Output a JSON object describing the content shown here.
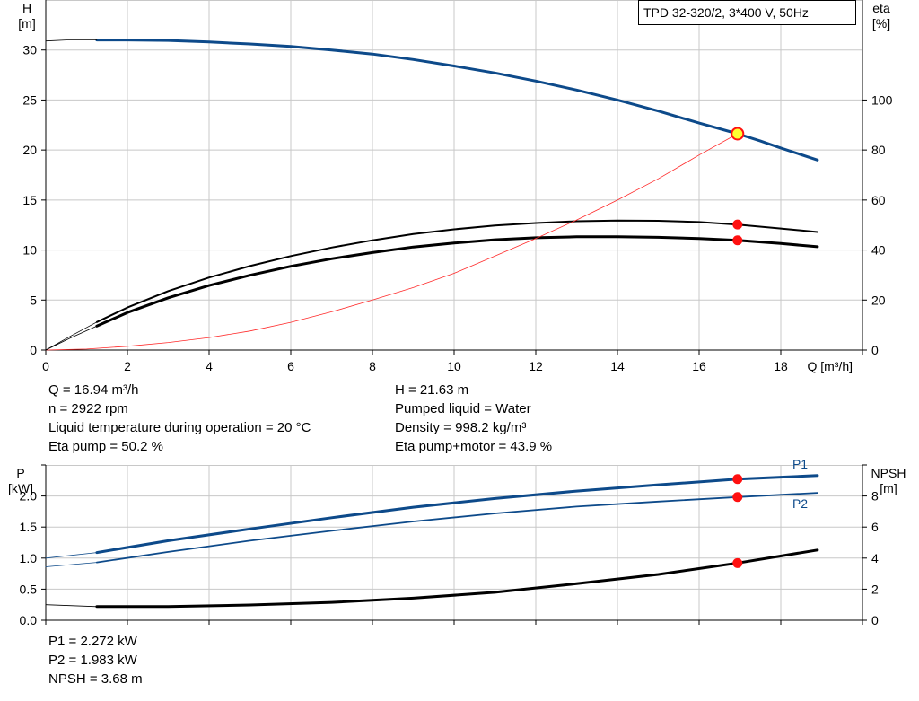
{
  "colors": {
    "grid": "#c8c8c8",
    "axis": "#000000",
    "blue": "#0d4a8a",
    "black": "#000000",
    "eta": "#ff2a2a",
    "op_fill": "#ff1010",
    "op_yellow": "#ffff30"
  },
  "chart_data": [
    {
      "id": "head",
      "type": "line",
      "legend_box": "TPD 32-320/2, 3*400 V, 50Hz",
      "y_left_label_line1": "H",
      "y_left_label_line2": "[m]",
      "y_right_label_line1": "eta",
      "y_right_label_line2": "[%]",
      "x_label": "Q [m³/h]",
      "xlim": [
        0,
        20
      ],
      "xticks": [
        0,
        2,
        4,
        6,
        8,
        10,
        12,
        14,
        16,
        18
      ],
      "ylim_left": [
        0,
        35
      ],
      "yticks_left": [
        0,
        5,
        10,
        15,
        20,
        25,
        30
      ],
      "ylim_right": [
        0,
        140
      ],
      "yticks_right": [
        0,
        20,
        40,
        60,
        80,
        100
      ],
      "series": [
        {
          "axis": "left",
          "color": "#0d4a8a",
          "width": 3,
          "x": [
            1.25,
            2,
            3,
            4,
            5,
            6,
            7,
            8,
            9,
            10,
            11,
            12,
            13,
            14,
            15,
            16,
            16.94,
            17.5,
            18,
            18.9
          ],
          "y": [
            31.0,
            31.0,
            30.95,
            30.8,
            30.6,
            30.35,
            30.0,
            29.6,
            29.05,
            28.4,
            27.7,
            26.9,
            26.0,
            25.0,
            23.9,
            22.7,
            21.63,
            20.9,
            20.2,
            19.0
          ]
        },
        {
          "axis": "right",
          "color": "#000000",
          "width": 2,
          "x": [
            1.25,
            2,
            3,
            4,
            5,
            6,
            7,
            8,
            9,
            10,
            11,
            12,
            13,
            14,
            15,
            16,
            16.94,
            18,
            18.9
          ],
          "y": [
            11.2,
            17.0,
            23.6,
            29.0,
            33.6,
            37.6,
            41.0,
            43.9,
            46.4,
            48.3,
            49.8,
            50.8,
            51.5,
            51.8,
            51.7,
            51.2,
            50.2,
            48.6,
            47.2
          ]
        },
        {
          "axis": "right",
          "color": "#000000",
          "width": 3,
          "x": [
            1.25,
            2,
            3,
            4,
            5,
            6,
            7,
            8,
            9,
            10,
            11,
            12,
            13,
            14,
            15,
            16,
            16.94,
            18,
            18.9
          ],
          "y": [
            9.6,
            15.0,
            20.9,
            25.8,
            29.9,
            33.5,
            36.5,
            39.0,
            41.2,
            42.8,
            44.1,
            44.9,
            45.3,
            45.3,
            45.1,
            44.6,
            43.9,
            42.6,
            41.3
          ]
        },
        {
          "axis": "right",
          "color": "#ff2a2a",
          "width": 0.8,
          "x": [
            0,
            1,
            2,
            3,
            4,
            5,
            6,
            7,
            8,
            9,
            10,
            11,
            12,
            13,
            14,
            15,
            16,
            16.94
          ],
          "y": [
            0.0,
            0.4,
            1.5,
            3.0,
            5.0,
            7.6,
            11.1,
            15.3,
            20.0,
            25.0,
            30.7,
            37.6,
            44.6,
            52.0,
            60.0,
            68.5,
            78.0,
            86.5
          ]
        },
        {
          "axis": "left",
          "color": "#000000",
          "width": 0.8,
          "x": [
            0,
            0.5,
            1.25
          ],
          "y": [
            30.9,
            31.0,
            31.0
          ]
        },
        {
          "axis": "right",
          "color": "#000000",
          "width": 0.8,
          "x": [
            0,
            0.6,
            1.25
          ],
          "y": [
            0,
            5.5,
            11.2
          ]
        },
        {
          "axis": "right",
          "color": "#000000",
          "width": 0.8,
          "x": [
            0,
            0.6,
            1.25
          ],
          "y": [
            0,
            4.8,
            9.6
          ]
        }
      ],
      "points": [
        {
          "axis": "left",
          "x": 16.94,
          "y": 21.63,
          "style": "yellow"
        },
        {
          "axis": "right",
          "x": 16.94,
          "y": 50.2,
          "style": "red"
        },
        {
          "axis": "right",
          "x": 16.94,
          "y": 43.9,
          "style": "red"
        }
      ]
    },
    {
      "id": "power",
      "type": "line",
      "y_left_label_line1": "P",
      "y_left_label_line2": "[kW]",
      "y_right_label_line1": "NPSH",
      "y_right_label_line2": "[m]",
      "xlim": [
        0,
        20
      ],
      "xticks": [
        0,
        2,
        4,
        6,
        8,
        10,
        12,
        14,
        16,
        18
      ],
      "ylim_left": [
        0,
        2.5
      ],
      "yticks_left": [
        0.0,
        0.5,
        1.0,
        1.5,
        2.0
      ],
      "yticks_left_labels": [
        "0.0",
        "0.5",
        "1.0",
        "1.5",
        "2.0"
      ],
      "ylim_right": [
        0,
        10
      ],
      "yticks_right": [
        0,
        2,
        4,
        6,
        8
      ],
      "series": [
        {
          "name": "P1",
          "axis": "left",
          "color": "#0d4a8a",
          "width": 3,
          "x": [
            1.25,
            3,
            5,
            7,
            9,
            11,
            13,
            15,
            16.94,
            18.9
          ],
          "y": [
            1.09,
            1.28,
            1.47,
            1.65,
            1.82,
            1.96,
            2.08,
            2.18,
            2.272,
            2.33
          ]
        },
        {
          "name": "P2",
          "axis": "left",
          "color": "#0d4a8a",
          "width": 1.8,
          "x": [
            1.25,
            3,
            5,
            7,
            9,
            11,
            13,
            15,
            16.94,
            18.9
          ],
          "y": [
            0.93,
            1.1,
            1.28,
            1.44,
            1.59,
            1.72,
            1.83,
            1.91,
            1.983,
            2.05
          ]
        },
        {
          "axis": "right",
          "color": "#000000",
          "width": 3,
          "x": [
            1.25,
            3,
            5,
            7,
            9,
            11,
            13,
            15,
            16.94,
            18.9
          ],
          "y": [
            0.88,
            0.88,
            0.98,
            1.15,
            1.42,
            1.8,
            2.35,
            2.95,
            3.68,
            4.52
          ]
        },
        {
          "axis": "left",
          "color": "#0d4a8a",
          "width": 0.8,
          "x": [
            0,
            1.25
          ],
          "y": [
            1.0,
            1.09
          ]
        },
        {
          "axis": "left",
          "color": "#0d4a8a",
          "width": 0.8,
          "x": [
            0,
            1.25
          ],
          "y": [
            0.86,
            0.93
          ]
        },
        {
          "axis": "right",
          "color": "#000000",
          "width": 0.8,
          "x": [
            0,
            1.25
          ],
          "y": [
            1.0,
            0.88
          ]
        }
      ],
      "points": [
        {
          "axis": "left",
          "x": 16.94,
          "y": 2.272,
          "style": "red"
        },
        {
          "axis": "left",
          "x": 16.94,
          "y": 1.983,
          "style": "red"
        },
        {
          "axis": "right",
          "x": 16.94,
          "y": 3.68,
          "style": "red"
        }
      ]
    }
  ],
  "readouts": {
    "left": [
      "Q = 16.94 m³/h",
      "n = 2922 rpm",
      "Liquid temperature during operation = 20 °C",
      "Eta pump = 50.2 %"
    ],
    "right": [
      "H = 21.63 m",
      "Pumped liquid = Water",
      "Density = 998.2 kg/m³",
      "Eta pump+motor = 43.9 %"
    ],
    "bottom": [
      "P1 = 2.272 kW",
      "P2 = 1.983 kW",
      "NPSH = 3.68 m"
    ]
  }
}
